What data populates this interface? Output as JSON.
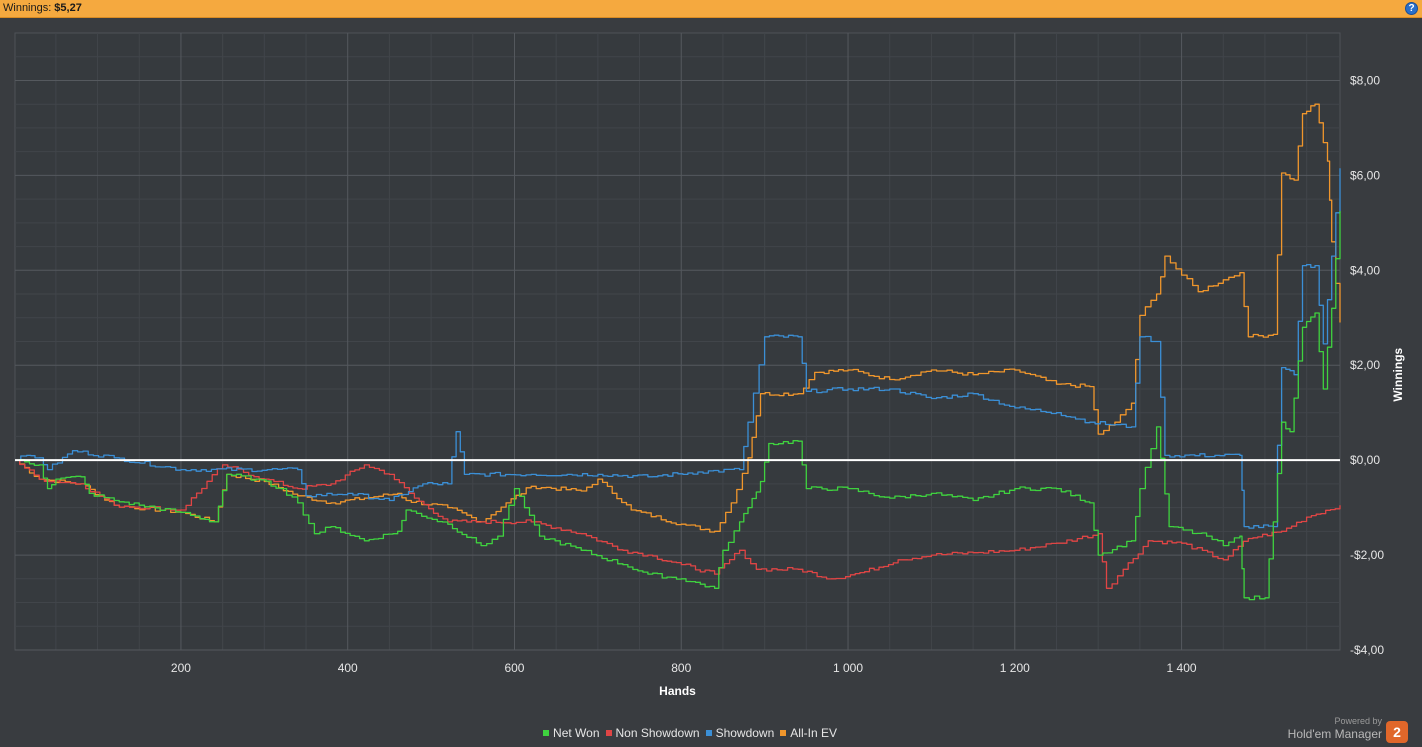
{
  "header": {
    "label": "Winnings:",
    "value": "$5,27",
    "help_icon": "question-icon"
  },
  "branding": {
    "powered_by": "Powered by",
    "name": "Hold'em Manager",
    "logo_text": "2"
  },
  "chart_data": {
    "type": "line",
    "xlabel": "Hands",
    "ylabel": "Winnings",
    "xlim": [
      1,
      1590
    ],
    "ylim": [
      -4,
      9
    ],
    "x_ticks": [
      200,
      400,
      600,
      800,
      1000,
      1200,
      1400
    ],
    "x_tick_labels": [
      "200",
      "400",
      "600",
      "800",
      "1 000",
      "1 200",
      "1 400"
    ],
    "y_ticks": [
      -4,
      -2,
      0,
      2,
      4,
      6,
      8
    ],
    "y_tick_labels": [
      "-$4,00",
      "-$2,00",
      "$0,00",
      "$2,00",
      "$4,00",
      "$6,00",
      "$8,00"
    ],
    "grid": true,
    "legend_position": "bottom",
    "series": [
      {
        "name": "Net Won",
        "color": "#3fd23f",
        "points": [
          [
            1,
            0
          ],
          [
            30,
            -0.1
          ],
          [
            40,
            -0.6
          ],
          [
            50,
            -0.4
          ],
          [
            80,
            -0.35
          ],
          [
            90,
            -0.7
          ],
          [
            120,
            -0.85
          ],
          [
            150,
            -0.95
          ],
          [
            200,
            -1.1
          ],
          [
            240,
            -1.3
          ],
          [
            255,
            -0.3
          ],
          [
            290,
            -0.4
          ],
          [
            320,
            -0.6
          ],
          [
            340,
            -0.9
          ],
          [
            360,
            -1.55
          ],
          [
            380,
            -1.4
          ],
          [
            420,
            -1.7
          ],
          [
            460,
            -1.5
          ],
          [
            470,
            -1.05
          ],
          [
            520,
            -1.35
          ],
          [
            560,
            -1.8
          ],
          [
            580,
            -1.6
          ],
          [
            600,
            -0.6
          ],
          [
            630,
            -1.6
          ],
          [
            680,
            -1.9
          ],
          [
            730,
            -2.2
          ],
          [
            760,
            -2.4
          ],
          [
            800,
            -2.5
          ],
          [
            840,
            -2.7
          ],
          [
            850,
            -1.9
          ],
          [
            870,
            -1.3
          ],
          [
            880,
            -1.0
          ],
          [
            895,
            -0.45
          ],
          [
            905,
            0.35
          ],
          [
            940,
            0.4
          ],
          [
            950,
            -0.6
          ],
          [
            1000,
            -0.6
          ],
          [
            1050,
            -0.8
          ],
          [
            1100,
            -0.7
          ],
          [
            1150,
            -0.85
          ],
          [
            1200,
            -0.6
          ],
          [
            1250,
            -0.6
          ],
          [
            1290,
            -0.9
          ],
          [
            1300,
            -2.0
          ],
          [
            1340,
            -1.7
          ],
          [
            1350,
            -0.6
          ],
          [
            1370,
            0.7
          ],
          [
            1385,
            -1.4
          ],
          [
            1430,
            -1.6
          ],
          [
            1450,
            -1.8
          ],
          [
            1470,
            -1.6
          ],
          [
            1475,
            -2.9
          ],
          [
            1500,
            -2.9
          ],
          [
            1510,
            -1.3
          ],
          [
            1520,
            0.8
          ],
          [
            1530,
            0.6
          ],
          [
            1545,
            2.8
          ],
          [
            1560,
            3.1
          ],
          [
            1570,
            1.5
          ],
          [
            1580,
            3.2
          ],
          [
            1590,
            5.25
          ]
        ]
      },
      {
        "name": "Non Showdown",
        "color": "#e04545",
        "points": [
          [
            1,
            0
          ],
          [
            30,
            -0.4
          ],
          [
            80,
            -0.5
          ],
          [
            120,
            -0.95
          ],
          [
            200,
            -1.05
          ],
          [
            250,
            -0.1
          ],
          [
            300,
            -0.4
          ],
          [
            340,
            -0.6
          ],
          [
            380,
            -0.5
          ],
          [
            420,
            -0.1
          ],
          [
            450,
            -0.3
          ],
          [
            480,
            -0.8
          ],
          [
            520,
            -1.3
          ],
          [
            560,
            -1.3
          ],
          [
            620,
            -1.3
          ],
          [
            680,
            -1.55
          ],
          [
            730,
            -1.9
          ],
          [
            760,
            -2.0
          ],
          [
            800,
            -2.2
          ],
          [
            840,
            -2.4
          ],
          [
            870,
            -1.9
          ],
          [
            890,
            -2.3
          ],
          [
            940,
            -2.3
          ],
          [
            980,
            -2.5
          ],
          [
            1020,
            -2.35
          ],
          [
            1060,
            -2.1
          ],
          [
            1100,
            -2.0
          ],
          [
            1150,
            -1.95
          ],
          [
            1200,
            -1.9
          ],
          [
            1250,
            -1.75
          ],
          [
            1300,
            -1.55
          ],
          [
            1310,
            -2.7
          ],
          [
            1330,
            -2.3
          ],
          [
            1360,
            -1.7
          ],
          [
            1400,
            -1.75
          ],
          [
            1450,
            -2.1
          ],
          [
            1480,
            -1.65
          ],
          [
            1520,
            -1.5
          ],
          [
            1550,
            -1.2
          ],
          [
            1590,
            -0.95
          ]
        ]
      },
      {
        "name": "Showdown",
        "color": "#3b8fd6",
        "points": [
          [
            1,
            0
          ],
          [
            15,
            0.1
          ],
          [
            30,
            0.05
          ],
          [
            40,
            -0.2
          ],
          [
            70,
            0.2
          ],
          [
            120,
            0.05
          ],
          [
            200,
            -0.2
          ],
          [
            340,
            -0.2
          ],
          [
            350,
            -0.75
          ],
          [
            400,
            -0.7
          ],
          [
            450,
            -0.85
          ],
          [
            490,
            -0.5
          ],
          [
            520,
            -0.5
          ],
          [
            530,
            0.6
          ],
          [
            540,
            -0.3
          ],
          [
            620,
            -0.3
          ],
          [
            700,
            -0.3
          ],
          [
            760,
            -0.35
          ],
          [
            820,
            -0.25
          ],
          [
            870,
            -0.2
          ],
          [
            880,
            0.8
          ],
          [
            900,
            2.6
          ],
          [
            940,
            2.6
          ],
          [
            950,
            1.45
          ],
          [
            1000,
            1.5
          ],
          [
            1050,
            1.5
          ],
          [
            1100,
            1.3
          ],
          [
            1150,
            1.4
          ],
          [
            1200,
            1.1
          ],
          [
            1250,
            1.0
          ],
          [
            1290,
            0.8
          ],
          [
            1340,
            0.7
          ],
          [
            1350,
            2.6
          ],
          [
            1370,
            2.5
          ],
          [
            1380,
            0.1
          ],
          [
            1470,
            0.1
          ],
          [
            1475,
            -1.4
          ],
          [
            1510,
            -1.4
          ],
          [
            1520,
            1.95
          ],
          [
            1535,
            1.8
          ],
          [
            1545,
            4.1
          ],
          [
            1560,
            4.1
          ],
          [
            1570,
            2.45
          ],
          [
            1580,
            4.3
          ],
          [
            1590,
            6.15
          ]
        ]
      },
      {
        "name": "All-In EV",
        "color": "#f0962c",
        "points": [
          [
            1,
            0
          ],
          [
            30,
            -0.4
          ],
          [
            80,
            -0.5
          ],
          [
            120,
            -0.95
          ],
          [
            200,
            -1.1
          ],
          [
            240,
            -1.3
          ],
          [
            255,
            -0.3
          ],
          [
            300,
            -0.45
          ],
          [
            340,
            -0.75
          ],
          [
            380,
            -0.9
          ],
          [
            420,
            -0.8
          ],
          [
            460,
            -0.7
          ],
          [
            470,
            -0.85
          ],
          [
            520,
            -1.0
          ],
          [
            560,
            -1.3
          ],
          [
            590,
            -0.9
          ],
          [
            620,
            -0.55
          ],
          [
            680,
            -0.65
          ],
          [
            700,
            -0.4
          ],
          [
            740,
            -1.05
          ],
          [
            800,
            -1.35
          ],
          [
            840,
            -1.5
          ],
          [
            860,
            -0.9
          ],
          [
            880,
            0.05
          ],
          [
            895,
            1.4
          ],
          [
            940,
            1.4
          ],
          [
            960,
            1.85
          ],
          [
            1000,
            1.9
          ],
          [
            1050,
            1.7
          ],
          [
            1100,
            1.9
          ],
          [
            1150,
            1.8
          ],
          [
            1200,
            1.9
          ],
          [
            1250,
            1.6
          ],
          [
            1290,
            1.55
          ],
          [
            1300,
            0.55
          ],
          [
            1320,
            0.8
          ],
          [
            1340,
            1.2
          ],
          [
            1350,
            3.05
          ],
          [
            1370,
            3.5
          ],
          [
            1380,
            4.3
          ],
          [
            1400,
            3.9
          ],
          [
            1420,
            3.55
          ],
          [
            1450,
            3.8
          ],
          [
            1470,
            3.95
          ],
          [
            1480,
            2.6
          ],
          [
            1510,
            2.65
          ],
          [
            1520,
            6.05
          ],
          [
            1535,
            5.9
          ],
          [
            1545,
            7.3
          ],
          [
            1560,
            7.5
          ],
          [
            1575,
            6.3
          ],
          [
            1580,
            4.6
          ],
          [
            1590,
            2.9
          ]
        ]
      }
    ]
  }
}
